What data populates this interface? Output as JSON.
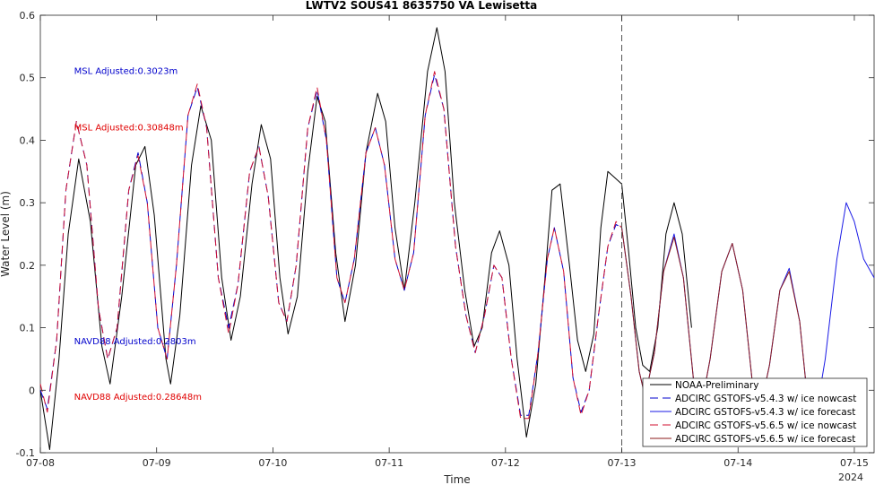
{
  "chart_data": {
    "type": "line",
    "title": "LWTV2 SOUS41 8635750 VA Lewisetta",
    "xlabel": "Time",
    "ylabel": "Water Level (m)",
    "year_label": "2024",
    "xlim": [
      0,
      7.17
    ],
    "ylim": [
      -0.1,
      0.6
    ],
    "x_ticks": [
      {
        "v": 0,
        "label": "07-08"
      },
      {
        "v": 1,
        "label": "07-09"
      },
      {
        "v": 2,
        "label": "07-10"
      },
      {
        "v": 3,
        "label": "07-11"
      },
      {
        "v": 4,
        "label": "07-12"
      },
      {
        "v": 5,
        "label": "07-13"
      },
      {
        "v": 6,
        "label": "07-14"
      },
      {
        "v": 7,
        "label": "07-15"
      }
    ],
    "y_ticks": [
      -0.1,
      0,
      0.1,
      0.2,
      0.3,
      0.4,
      0.5,
      0.6
    ],
    "nowcast_line_x": 5.0,
    "grid": false,
    "legend_position": "bottom-right",
    "annotations": [
      {
        "text": "MSL Adjusted:0.3023m",
        "x": 0.29,
        "y": 0.51,
        "color": "#0000CC"
      },
      {
        "text": "MSL Adjusted:0.30848m",
        "x": 0.29,
        "y": 0.42,
        "color": "#E00000"
      },
      {
        "text": "NAVD88 Adjusted:0.2803m",
        "x": 0.29,
        "y": 0.078,
        "color": "#0000CC"
      },
      {
        "text": "NAVD88 Adjusted:0.28648m",
        "x": 0.29,
        "y": -0.011,
        "color": "#E00000"
      }
    ],
    "series": [
      {
        "name": "NOAA-Preliminary",
        "color": "#000000",
        "dash": "solid",
        "points": [
          [
            0,
            0.0
          ],
          [
            0.08,
            -0.095
          ],
          [
            0.16,
            0.05
          ],
          [
            0.24,
            0.25
          ],
          [
            0.33,
            0.37
          ],
          [
            0.43,
            0.27
          ],
          [
            0.53,
            0.07
          ],
          [
            0.6,
            0.01
          ],
          [
            0.7,
            0.15
          ],
          [
            0.82,
            0.36
          ],
          [
            0.9,
            0.39
          ],
          [
            0.98,
            0.28
          ],
          [
            1.08,
            0.05
          ],
          [
            1.12,
            0.01
          ],
          [
            1.2,
            0.12
          ],
          [
            1.3,
            0.36
          ],
          [
            1.38,
            0.455
          ],
          [
            1.47,
            0.4
          ],
          [
            1.56,
            0.18
          ],
          [
            1.64,
            0.08
          ],
          [
            1.72,
            0.15
          ],
          [
            1.82,
            0.33
          ],
          [
            1.9,
            0.425
          ],
          [
            1.98,
            0.37
          ],
          [
            2.06,
            0.18
          ],
          [
            2.13,
            0.09
          ],
          [
            2.21,
            0.15
          ],
          [
            2.3,
            0.35
          ],
          [
            2.38,
            0.47
          ],
          [
            2.45,
            0.43
          ],
          [
            2.54,
            0.22
          ],
          [
            2.62,
            0.11
          ],
          [
            2.71,
            0.2
          ],
          [
            2.8,
            0.38
          ],
          [
            2.9,
            0.475
          ],
          [
            2.97,
            0.43
          ],
          [
            3.05,
            0.26
          ],
          [
            3.13,
            0.16
          ],
          [
            3.22,
            0.3
          ],
          [
            3.33,
            0.51
          ],
          [
            3.41,
            0.58
          ],
          [
            3.48,
            0.51
          ],
          [
            3.56,
            0.3
          ],
          [
            3.65,
            0.16
          ],
          [
            3.73,
            0.07
          ],
          [
            3.8,
            0.1
          ],
          [
            3.88,
            0.22
          ],
          [
            3.95,
            0.255
          ],
          [
            4.03,
            0.2
          ],
          [
            4.1,
            0.05
          ],
          [
            4.18,
            -0.075
          ],
          [
            4.26,
            0.01
          ],
          [
            4.34,
            0.18
          ],
          [
            4.4,
            0.32
          ],
          [
            4.47,
            0.33
          ],
          [
            4.55,
            0.2
          ],
          [
            4.62,
            0.08
          ],
          [
            4.69,
            0.03
          ],
          [
            4.76,
            0.09
          ],
          [
            4.82,
            0.26
          ],
          [
            4.88,
            0.35
          ],
          [
            4.94,
            0.34
          ],
          [
            5.0,
            0.33
          ],
          [
            5.06,
            0.22
          ],
          [
            5.12,
            0.1
          ],
          [
            5.18,
            0.04
          ],
          [
            5.24,
            0.03
          ],
          [
            5.31,
            0.1
          ],
          [
            5.38,
            0.25
          ],
          [
            5.45,
            0.3
          ],
          [
            5.52,
            0.25
          ],
          [
            5.6,
            0.1
          ]
        ]
      },
      {
        "name": "ADCIRC GSTOFS-v5.4.3 w/ ice nowcast",
        "color": "#0000CC",
        "dash": "dashed",
        "points": [
          [
            0,
            0.0
          ],
          [
            0.06,
            -0.03
          ],
          [
            0.14,
            0.08
          ],
          [
            0.22,
            0.32
          ],
          [
            0.31,
            0.43
          ],
          [
            0.4,
            0.36
          ],
          [
            0.5,
            0.13
          ],
          [
            0.58,
            0.05
          ],
          [
            0.66,
            0.1
          ],
          [
            0.76,
            0.32
          ],
          [
            0.84,
            0.38
          ],
          [
            0.92,
            0.3
          ],
          [
            1.01,
            0.1
          ],
          [
            1.09,
            0.05
          ],
          [
            1.17,
            0.2
          ],
          [
            1.27,
            0.44
          ],
          [
            1.35,
            0.485
          ],
          [
            1.43,
            0.42
          ],
          [
            1.53,
            0.18
          ],
          [
            1.62,
            0.1
          ],
          [
            1.7,
            0.17
          ],
          [
            1.8,
            0.35
          ],
          [
            1.88,
            0.39
          ],
          [
            1.96,
            0.31
          ],
          [
            2.05,
            0.14
          ],
          [
            2.12,
            0.11
          ],
          [
            2.2,
            0.2
          ],
          [
            2.3,
            0.42
          ],
          [
            2.38,
            0.48
          ],
          [
            2.46,
            0.4
          ],
          [
            2.55,
            0.18
          ],
          [
            2.62,
            0.14
          ],
          [
            2.7,
            0.21
          ],
          [
            2.8,
            0.38
          ],
          [
            2.88,
            0.42
          ],
          [
            2.96,
            0.36
          ],
          [
            3.05,
            0.21
          ],
          [
            3.13,
            0.16
          ],
          [
            3.21,
            0.22
          ],
          [
            3.31,
            0.44
          ],
          [
            3.39,
            0.505
          ],
          [
            3.47,
            0.45
          ],
          [
            3.57,
            0.23
          ],
          [
            3.66,
            0.12
          ],
          [
            3.74,
            0.06
          ],
          [
            3.82,
            0.12
          ],
          [
            3.9,
            0.2
          ],
          [
            3.97,
            0.18
          ],
          [
            4.05,
            0.05
          ],
          [
            4.13,
            -0.04
          ],
          [
            4.2,
            -0.04
          ],
          [
            4.28,
            0.06
          ],
          [
            4.36,
            0.21
          ],
          [
            4.42,
            0.26
          ],
          [
            4.5,
            0.19
          ],
          [
            4.58,
            0.02
          ],
          [
            4.65,
            -0.035
          ],
          [
            4.72,
            0.0
          ],
          [
            4.8,
            0.12
          ],
          [
            4.88,
            0.23
          ],
          [
            4.95,
            0.265
          ],
          [
            5.0,
            0.26
          ]
        ]
      },
      {
        "name": "ADCIRC GSTOFS-v5.4.3 w/ ice forecast",
        "color": "#1A1AE6",
        "dash": "solid",
        "points": [
          [
            5.0,
            0.26
          ],
          [
            5.08,
            0.15
          ],
          [
            5.15,
            0.03
          ],
          [
            5.2,
            -0.01
          ],
          [
            5.28,
            0.06
          ],
          [
            5.36,
            0.19
          ],
          [
            5.45,
            0.25
          ],
          [
            5.53,
            0.18
          ],
          [
            5.62,
            0.01
          ],
          [
            5.68,
            -0.03
          ],
          [
            5.76,
            0.05
          ],
          [
            5.86,
            0.19
          ],
          [
            5.95,
            0.235
          ],
          [
            6.04,
            0.16
          ],
          [
            6.13,
            0.0
          ],
          [
            6.19,
            -0.03
          ],
          [
            6.27,
            0.04
          ],
          [
            6.36,
            0.16
          ],
          [
            6.44,
            0.195
          ],
          [
            6.53,
            0.11
          ],
          [
            6.6,
            -0.02
          ],
          [
            6.67,
            -0.04
          ],
          [
            6.75,
            0.05
          ],
          [
            6.85,
            0.21
          ],
          [
            6.93,
            0.3
          ],
          [
            7.0,
            0.27
          ],
          [
            7.08,
            0.21
          ],
          [
            7.17,
            0.18
          ]
        ]
      },
      {
        "name": "ADCIRC GSTOFS-v5.6.5 w/ ice nowcast",
        "color": "#D01030",
        "dash": "dashed",
        "points": [
          [
            0,
            0.01
          ],
          [
            0.06,
            -0.035
          ],
          [
            0.14,
            0.08
          ],
          [
            0.22,
            0.32
          ],
          [
            0.31,
            0.43
          ],
          [
            0.4,
            0.36
          ],
          [
            0.5,
            0.13
          ],
          [
            0.58,
            0.05
          ],
          [
            0.66,
            0.1
          ],
          [
            0.76,
            0.32
          ],
          [
            0.84,
            0.375
          ],
          [
            0.92,
            0.3
          ],
          [
            1.01,
            0.1
          ],
          [
            1.09,
            0.05
          ],
          [
            1.17,
            0.2
          ],
          [
            1.27,
            0.44
          ],
          [
            1.35,
            0.49
          ],
          [
            1.43,
            0.42
          ],
          [
            1.53,
            0.18
          ],
          [
            1.62,
            0.09
          ],
          [
            1.7,
            0.17
          ],
          [
            1.8,
            0.35
          ],
          [
            1.88,
            0.39
          ],
          [
            1.96,
            0.31
          ],
          [
            2.05,
            0.14
          ],
          [
            2.12,
            0.11
          ],
          [
            2.2,
            0.2
          ],
          [
            2.3,
            0.42
          ],
          [
            2.38,
            0.485
          ],
          [
            2.46,
            0.4
          ],
          [
            2.55,
            0.18
          ],
          [
            2.62,
            0.14
          ],
          [
            2.7,
            0.21
          ],
          [
            2.8,
            0.38
          ],
          [
            2.88,
            0.42
          ],
          [
            2.96,
            0.36
          ],
          [
            3.05,
            0.21
          ],
          [
            3.13,
            0.16
          ],
          [
            3.21,
            0.22
          ],
          [
            3.31,
            0.44
          ],
          [
            3.39,
            0.51
          ],
          [
            3.47,
            0.45
          ],
          [
            3.57,
            0.23
          ],
          [
            3.66,
            0.12
          ],
          [
            3.74,
            0.06
          ],
          [
            3.82,
            0.12
          ],
          [
            3.9,
            0.2
          ],
          [
            3.97,
            0.18
          ],
          [
            4.05,
            0.05
          ],
          [
            4.13,
            -0.045
          ],
          [
            4.2,
            -0.045
          ],
          [
            4.28,
            0.06
          ],
          [
            4.36,
            0.21
          ],
          [
            4.42,
            0.26
          ],
          [
            4.5,
            0.19
          ],
          [
            4.58,
            0.02
          ],
          [
            4.65,
            -0.04
          ],
          [
            4.72,
            0.0
          ],
          [
            4.8,
            0.12
          ],
          [
            4.88,
            0.23
          ],
          [
            4.95,
            0.27
          ],
          [
            5.0,
            0.26
          ]
        ]
      },
      {
        "name": "ADCIRC GSTOFS-v5.6.5 w/ ice forecast",
        "color": "#8B1A1A",
        "dash": "solid",
        "points": [
          [
            5.0,
            0.26
          ],
          [
            5.08,
            0.15
          ],
          [
            5.15,
            0.03
          ],
          [
            5.2,
            -0.01
          ],
          [
            5.28,
            0.06
          ],
          [
            5.36,
            0.19
          ],
          [
            5.45,
            0.245
          ],
          [
            5.53,
            0.18
          ],
          [
            5.62,
            0.01
          ],
          [
            5.68,
            -0.03
          ],
          [
            5.76,
            0.05
          ],
          [
            5.86,
            0.19
          ],
          [
            5.95,
            0.235
          ],
          [
            6.04,
            0.16
          ],
          [
            6.13,
            0.0
          ],
          [
            6.19,
            -0.03
          ],
          [
            6.27,
            0.04
          ],
          [
            6.36,
            0.16
          ],
          [
            6.44,
            0.19
          ],
          [
            6.53,
            0.11
          ],
          [
            6.6,
            -0.02
          ]
        ]
      }
    ]
  }
}
